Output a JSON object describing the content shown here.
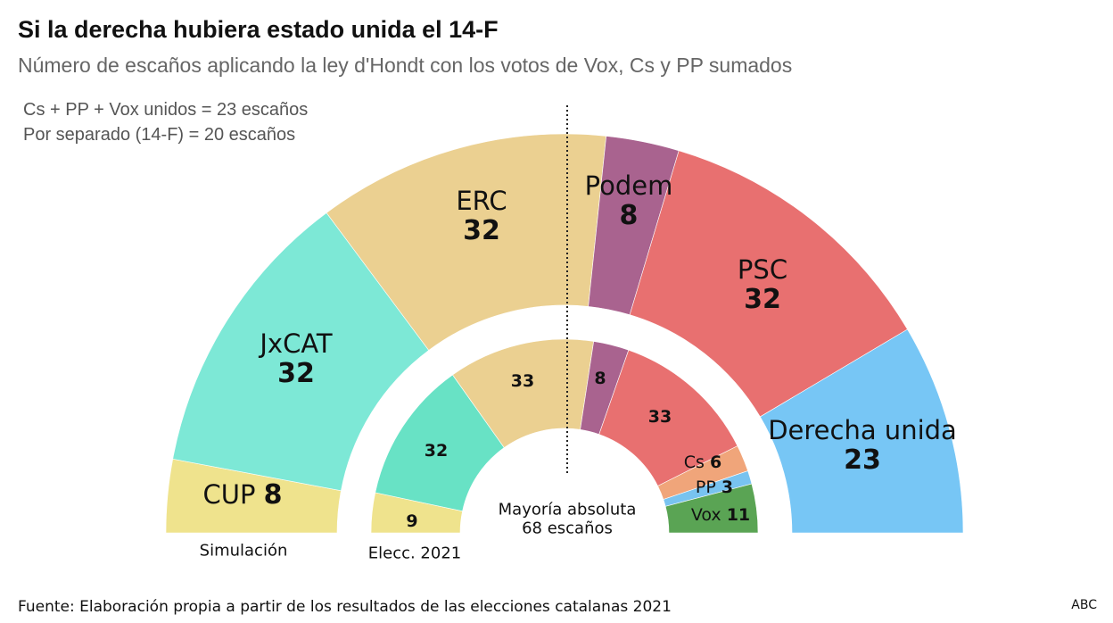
{
  "title": "Si la derecha hubiera estado unida el 14-F",
  "subtitle": "Número de escaños aplicando la ley d'Hondt con los votos de Vox, Cs y PP sumados",
  "notes": [
    "Cs + PP + Vox unidos = 23 escaños",
    "Por separado (14-F) = 20 escaños"
  ],
  "chart_data": [
    {
      "type": "pie",
      "variant": "half-donut parliament",
      "ring": "outer",
      "label": "Simulación",
      "total": 135,
      "categories": [
        "CUP",
        "JxCAT",
        "ERC",
        "Podem",
        "PSC",
        "Derecha unida"
      ],
      "values": [
        8,
        32,
        32,
        8,
        32,
        23
      ],
      "colors": [
        "#efe38d",
        "#7de8d6",
        "#ebd091",
        "#a9638f",
        "#e87070",
        "#77c6f5"
      ]
    },
    {
      "type": "pie",
      "variant": "half-donut parliament",
      "ring": "inner",
      "label": "Elecc. 2021",
      "total": 135,
      "categories": [
        "CUP",
        "JxCAT",
        "ERC",
        "Podem",
        "PSC",
        "Cs",
        "PP",
        "Vox"
      ],
      "values": [
        9,
        32,
        33,
        8,
        33,
        6,
        3,
        11
      ],
      "colors": [
        "#efe38d",
        "#68e2c5",
        "#ebd091",
        "#a9638f",
        "#e87070",
        "#f0a57a",
        "#78c3f0",
        "#5aa454"
      ]
    }
  ],
  "majority": {
    "line1": "Mayoría absoluta",
    "line2": "68 escaños"
  },
  "source": "Fuente: Elaboración propia a partir de los resultados de las elecciones catalanas 2021",
  "brand": "ABC"
}
